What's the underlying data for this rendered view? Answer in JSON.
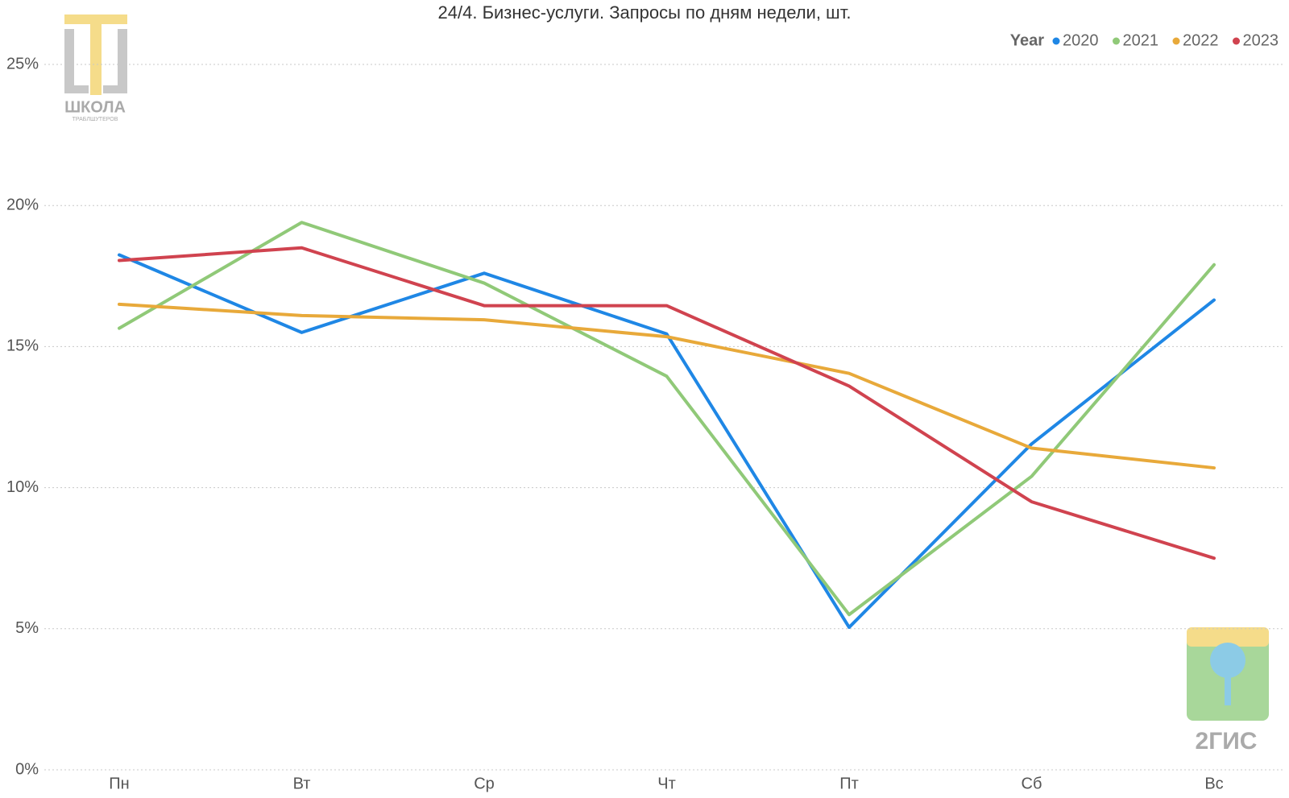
{
  "chart_data": {
    "type": "line",
    "title": "24/4. Бизнес-услуги. Запросы по дням недели, шт.",
    "legend_title": "Year",
    "legend": "top-right",
    "grid": true,
    "categories": [
      "Пн",
      "Вт",
      "Ср",
      "Чт",
      "Пт",
      "Сб",
      "Вс"
    ],
    "series": [
      {
        "name": "2020",
        "color": "#1f87e5",
        "values": [
          18.25,
          15.5,
          17.6,
          15.45,
          5.05,
          11.55,
          16.65
        ]
      },
      {
        "name": "2021",
        "color": "#90c978",
        "values": [
          15.65,
          19.4,
          17.25,
          13.95,
          5.5,
          10.4,
          17.9
        ]
      },
      {
        "name": "2022",
        "color": "#e8a93a",
        "values": [
          16.5,
          16.1,
          15.95,
          15.35,
          14.05,
          11.4,
          10.7
        ]
      },
      {
        "name": "2023",
        "color": "#d0434f",
        "values": [
          18.05,
          18.5,
          16.45,
          16.45,
          13.6,
          9.5,
          7.5
        ]
      }
    ],
    "ylim": [
      0,
      25
    ],
    "yticks": [
      {
        "value": 0,
        "label": "0%"
      },
      {
        "value": 5,
        "label": "5%"
      },
      {
        "value": 10,
        "label": "10%"
      },
      {
        "value": 15,
        "label": "15%"
      },
      {
        "value": 20,
        "label": "20%"
      },
      {
        "value": 25,
        "label": "25%"
      }
    ]
  },
  "logos": {
    "school": "ШКОЛА",
    "school_sub": "ТРАБЛШУТЕРОВ",
    "gis": "2ГИС"
  }
}
